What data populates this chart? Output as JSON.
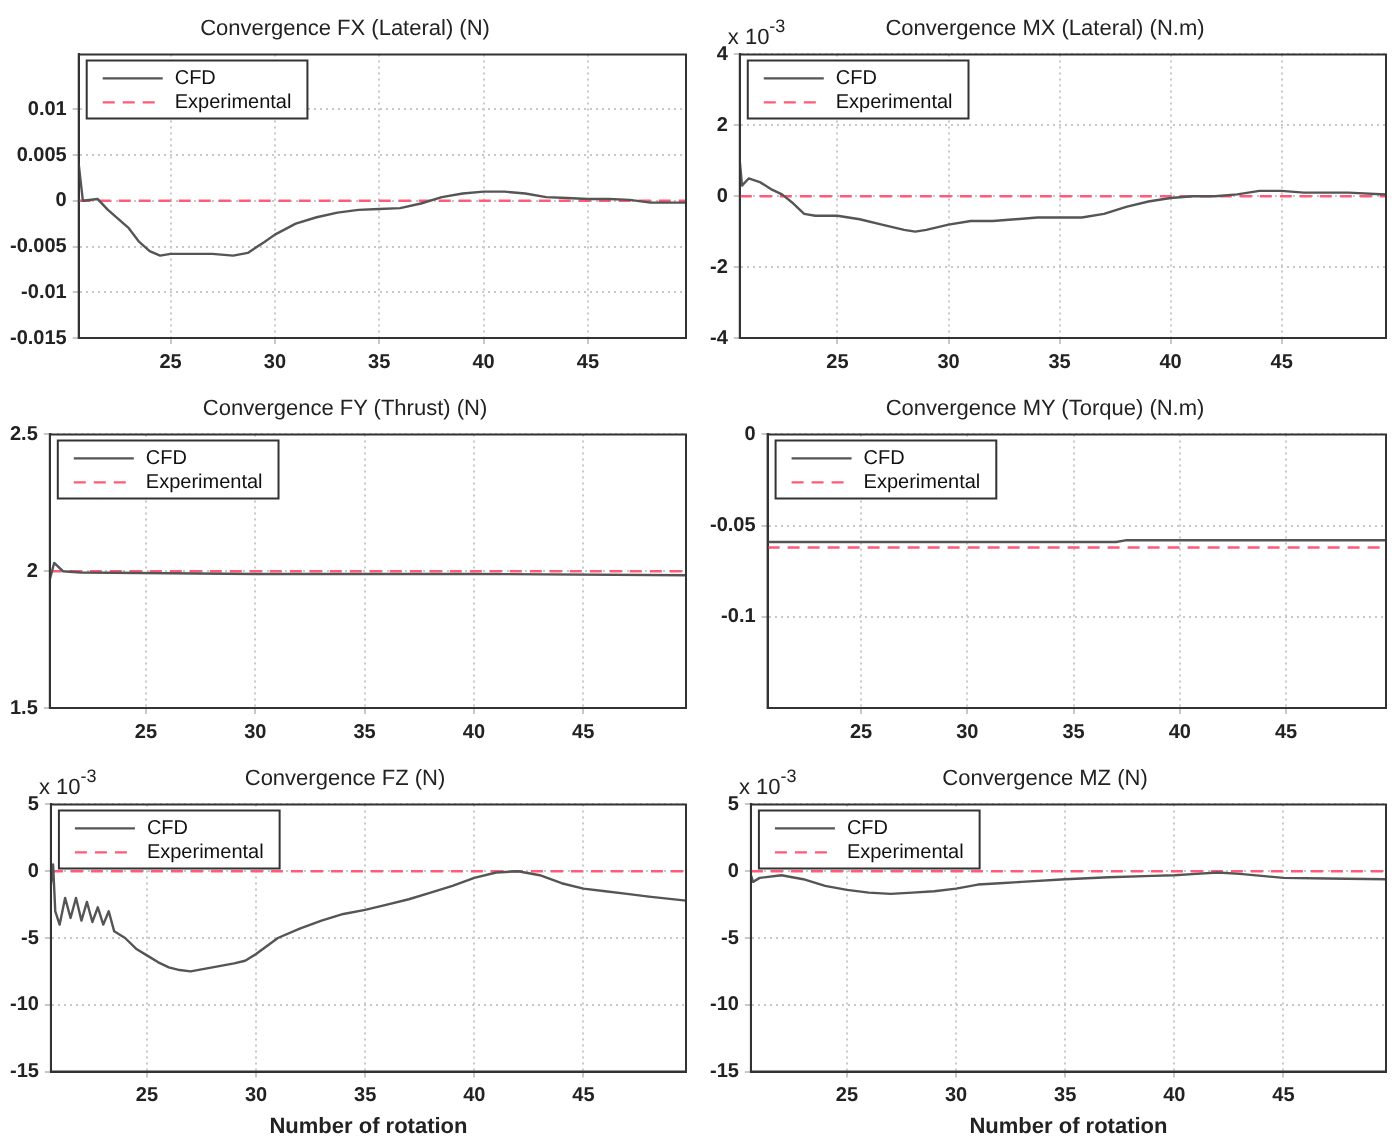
{
  "chart_data": [
    {
      "type": "line",
      "title": "Convergence FX (Lateral) (N)",
      "xlim": [
        20.6,
        49.7
      ],
      "xticks": [
        25,
        30,
        35,
        40,
        45
      ],
      "ylim": [
        -0.015,
        0.016
      ],
      "yticks": [
        -0.015,
        -0.01,
        -0.005,
        0,
        0.005,
        0.01
      ],
      "grid": true,
      "legend": "top left",
      "marker": "none",
      "series": [
        {
          "name": "CFD",
          "color": "#555555",
          "x": [
            20.6,
            20.8,
            21.5,
            22,
            23,
            23.5,
            24,
            24.5,
            25,
            26,
            27,
            28,
            28.7,
            29.5,
            30,
            31,
            32,
            33,
            34,
            35,
            36,
            37,
            38,
            39,
            40,
            41,
            42,
            43,
            44,
            45,
            46,
            47,
            48,
            49.7
          ],
          "values": [
            0.004,
            0,
            0.0002,
            -0.001,
            -0.003,
            -0.0045,
            -0.0055,
            -0.006,
            -0.0058,
            -0.0058,
            -0.0058,
            -0.006,
            -0.0057,
            -0.0045,
            -0.0037,
            -0.0025,
            -0.0018,
            -0.0013,
            -0.001,
            -0.0009,
            -0.0008,
            -0.0003,
            0.0004,
            0.0008,
            0.001,
            0.001,
            0.0008,
            0.0004,
            0.0003,
            0.0002,
            0.0002,
            0.0001,
            -0.0002,
            -0.0002
          ]
        },
        {
          "name": "Experimental",
          "color": "#ff5a78",
          "line_style": "dashed",
          "x": [
            20.6,
            49.7
          ],
          "values": [
            0,
            0
          ]
        }
      ]
    },
    {
      "type": "line",
      "title": "Convergence MX (Lateral) (N.m)",
      "annotations": [
        "x 10$^{-3}$"
      ],
      "xlim": [
        20.6,
        49.7
      ],
      "xticks": [
        25,
        30,
        35,
        40,
        45
      ],
      "ylim": [
        -4,
        4
      ],
      "yticks": [
        -4,
        -2,
        0,
        2,
        4
      ],
      "grid": true,
      "legend": "top left",
      "marker": "none",
      "series": [
        {
          "name": "CFD",
          "color": "#555555",
          "x": [
            20.6,
            20.7,
            21,
            21.5,
            22,
            22.5,
            23,
            23.5,
            24,
            25,
            26,
            27,
            28,
            28.5,
            29,
            30,
            31,
            32,
            33,
            34,
            35,
            36,
            37,
            38,
            39,
            40,
            41,
            42,
            43,
            44,
            45,
            46,
            47,
            48,
            49.7
          ],
          "values": [
            1.0,
            0.3,
            0.5,
            0.4,
            0.2,
            0.05,
            -0.2,
            -0.5,
            -0.55,
            -0.55,
            -0.65,
            -0.8,
            -0.95,
            -1.0,
            -0.95,
            -0.8,
            -0.7,
            -0.7,
            -0.65,
            -0.6,
            -0.6,
            -0.6,
            -0.5,
            -0.3,
            -0.15,
            -0.05,
            0,
            0,
            0.05,
            0.15,
            0.15,
            0.1,
            0.1,
            0.1,
            0.05
          ]
        },
        {
          "name": "Experimental",
          "color": "#ff5a78",
          "line_style": "dashed",
          "x": [
            20.6,
            49.7
          ],
          "values": [
            0,
            0
          ]
        }
      ]
    },
    {
      "type": "line",
      "title": "Convergence FY (Thrust) (N)",
      "xlim": [
        20.6,
        49.7
      ],
      "xticks": [
        25,
        30,
        35,
        40,
        45
      ],
      "ylim": [
        1.5,
        2.5
      ],
      "yticks": [
        1.5,
        2,
        2.5
      ],
      "grid": true,
      "legend": "top left",
      "marker": "none",
      "series": [
        {
          "name": "CFD",
          "color": "#555555",
          "x": [
            20.6,
            20.8,
            21.2,
            22,
            30,
            40,
            49.7
          ],
          "values": [
            1.97,
            2.03,
            2.0,
            1.995,
            1.99,
            1.99,
            1.985
          ]
        },
        {
          "name": "Experimental",
          "color": "#ff5a78",
          "line_style": "dashed",
          "x": [
            20.6,
            49.7
          ],
          "values": [
            2.0,
            2.0
          ]
        }
      ]
    },
    {
      "type": "line",
      "title": "Convergence MY (Torque) (N.m)",
      "xlim": [
        20.6,
        49.7
      ],
      "xticks": [
        25,
        30,
        35,
        40,
        45
      ],
      "ylim": [
        -0.15,
        0
      ],
      "yticks": [
        -0.1,
        -0.05,
        0
      ],
      "grid": true,
      "legend": "top left",
      "marker": "none",
      "series": [
        {
          "name": "CFD",
          "color": "#555555",
          "x": [
            20.6,
            37,
            37.5,
            49.7
          ],
          "values": [
            -0.059,
            -0.059,
            -0.058,
            -0.058
          ]
        },
        {
          "name": "Experimental",
          "color": "#ff5a78",
          "line_style": "dashed",
          "x": [
            20.6,
            49.7
          ],
          "values": [
            -0.062,
            -0.062
          ]
        }
      ]
    },
    {
      "type": "line",
      "title": "Convergence FZ (N)",
      "xlabel": "Number of rotation",
      "annotations": [
        "x 10$^{-3}$"
      ],
      "xlim": [
        20.6,
        49.7
      ],
      "xticks": [
        25,
        30,
        35,
        40,
        45
      ],
      "ylim": [
        -15,
        5
      ],
      "yticks": [
        -15,
        -10,
        -5,
        0,
        5
      ],
      "grid": true,
      "legend": "top left",
      "marker": "none",
      "series": [
        {
          "name": "CFD",
          "color": "#555555",
          "x": [
            20.6,
            20.7,
            20.8,
            21,
            21.25,
            21.5,
            21.75,
            22,
            22.25,
            22.5,
            22.75,
            23,
            23.25,
            23.5,
            24,
            24.5,
            25,
            25.5,
            26,
            26.5,
            27,
            28,
            29,
            29.5,
            30,
            31,
            32,
            33,
            34,
            35,
            36,
            37,
            38,
            39,
            40,
            41,
            42,
            43,
            44,
            45,
            46,
            47,
            48,
            49.7
          ],
          "values": [
            -1,
            0.5,
            -3,
            -4,
            -2,
            -3.5,
            -2,
            -3.7,
            -2.3,
            -3.8,
            -2.7,
            -4,
            -3,
            -4.5,
            -5,
            -5.8,
            -6.3,
            -6.8,
            -7.2,
            -7.4,
            -7.5,
            -7.2,
            -6.9,
            -6.7,
            -6.2,
            -5,
            -4.3,
            -3.7,
            -3.2,
            -2.9,
            -2.5,
            -2.1,
            -1.6,
            -1.1,
            -0.5,
            -0.1,
            0,
            -0.3,
            -0.9,
            -1.3,
            -1.5,
            -1.7,
            -1.9,
            -2.2
          ]
        },
        {
          "name": "Experimental",
          "color": "#ff5a78",
          "line_style": "dashed",
          "x": [
            20.6,
            49.7
          ],
          "values": [
            0,
            0
          ]
        }
      ]
    },
    {
      "type": "line",
      "title": "Convergence MZ (N)",
      "xlabel": "Number of rotation",
      "annotations": [
        "x 10$^{-3}$"
      ],
      "xlim": [
        20.6,
        49.7
      ],
      "xticks": [
        25,
        30,
        35,
        40,
        45
      ],
      "ylim": [
        -15,
        5
      ],
      "yticks": [
        -15,
        -10,
        -5,
        0,
        5
      ],
      "grid": true,
      "legend": "top left",
      "marker": "none",
      "series": [
        {
          "name": "CFD",
          "color": "#555555",
          "x": [
            20.6,
            20.7,
            21,
            22,
            23,
            24,
            25,
            26,
            27,
            28,
            29,
            30,
            31,
            32,
            33,
            35,
            37,
            39,
            40,
            41,
            42,
            43,
            44,
            45,
            47,
            49.7
          ],
          "values": [
            -0.3,
            -0.8,
            -0.5,
            -0.3,
            -0.6,
            -1.1,
            -1.4,
            -1.6,
            -1.7,
            -1.6,
            -1.5,
            -1.3,
            -1.0,
            -0.9,
            -0.8,
            -0.6,
            -0.45,
            -0.35,
            -0.3,
            -0.2,
            -0.1,
            -0.2,
            -0.35,
            -0.5,
            -0.55,
            -0.6
          ]
        },
        {
          "name": "Experimental",
          "color": "#ff5a78",
          "line_style": "dashed",
          "x": [
            20.6,
            49.7
          ],
          "values": [
            0,
            0
          ]
        }
      ]
    }
  ]
}
